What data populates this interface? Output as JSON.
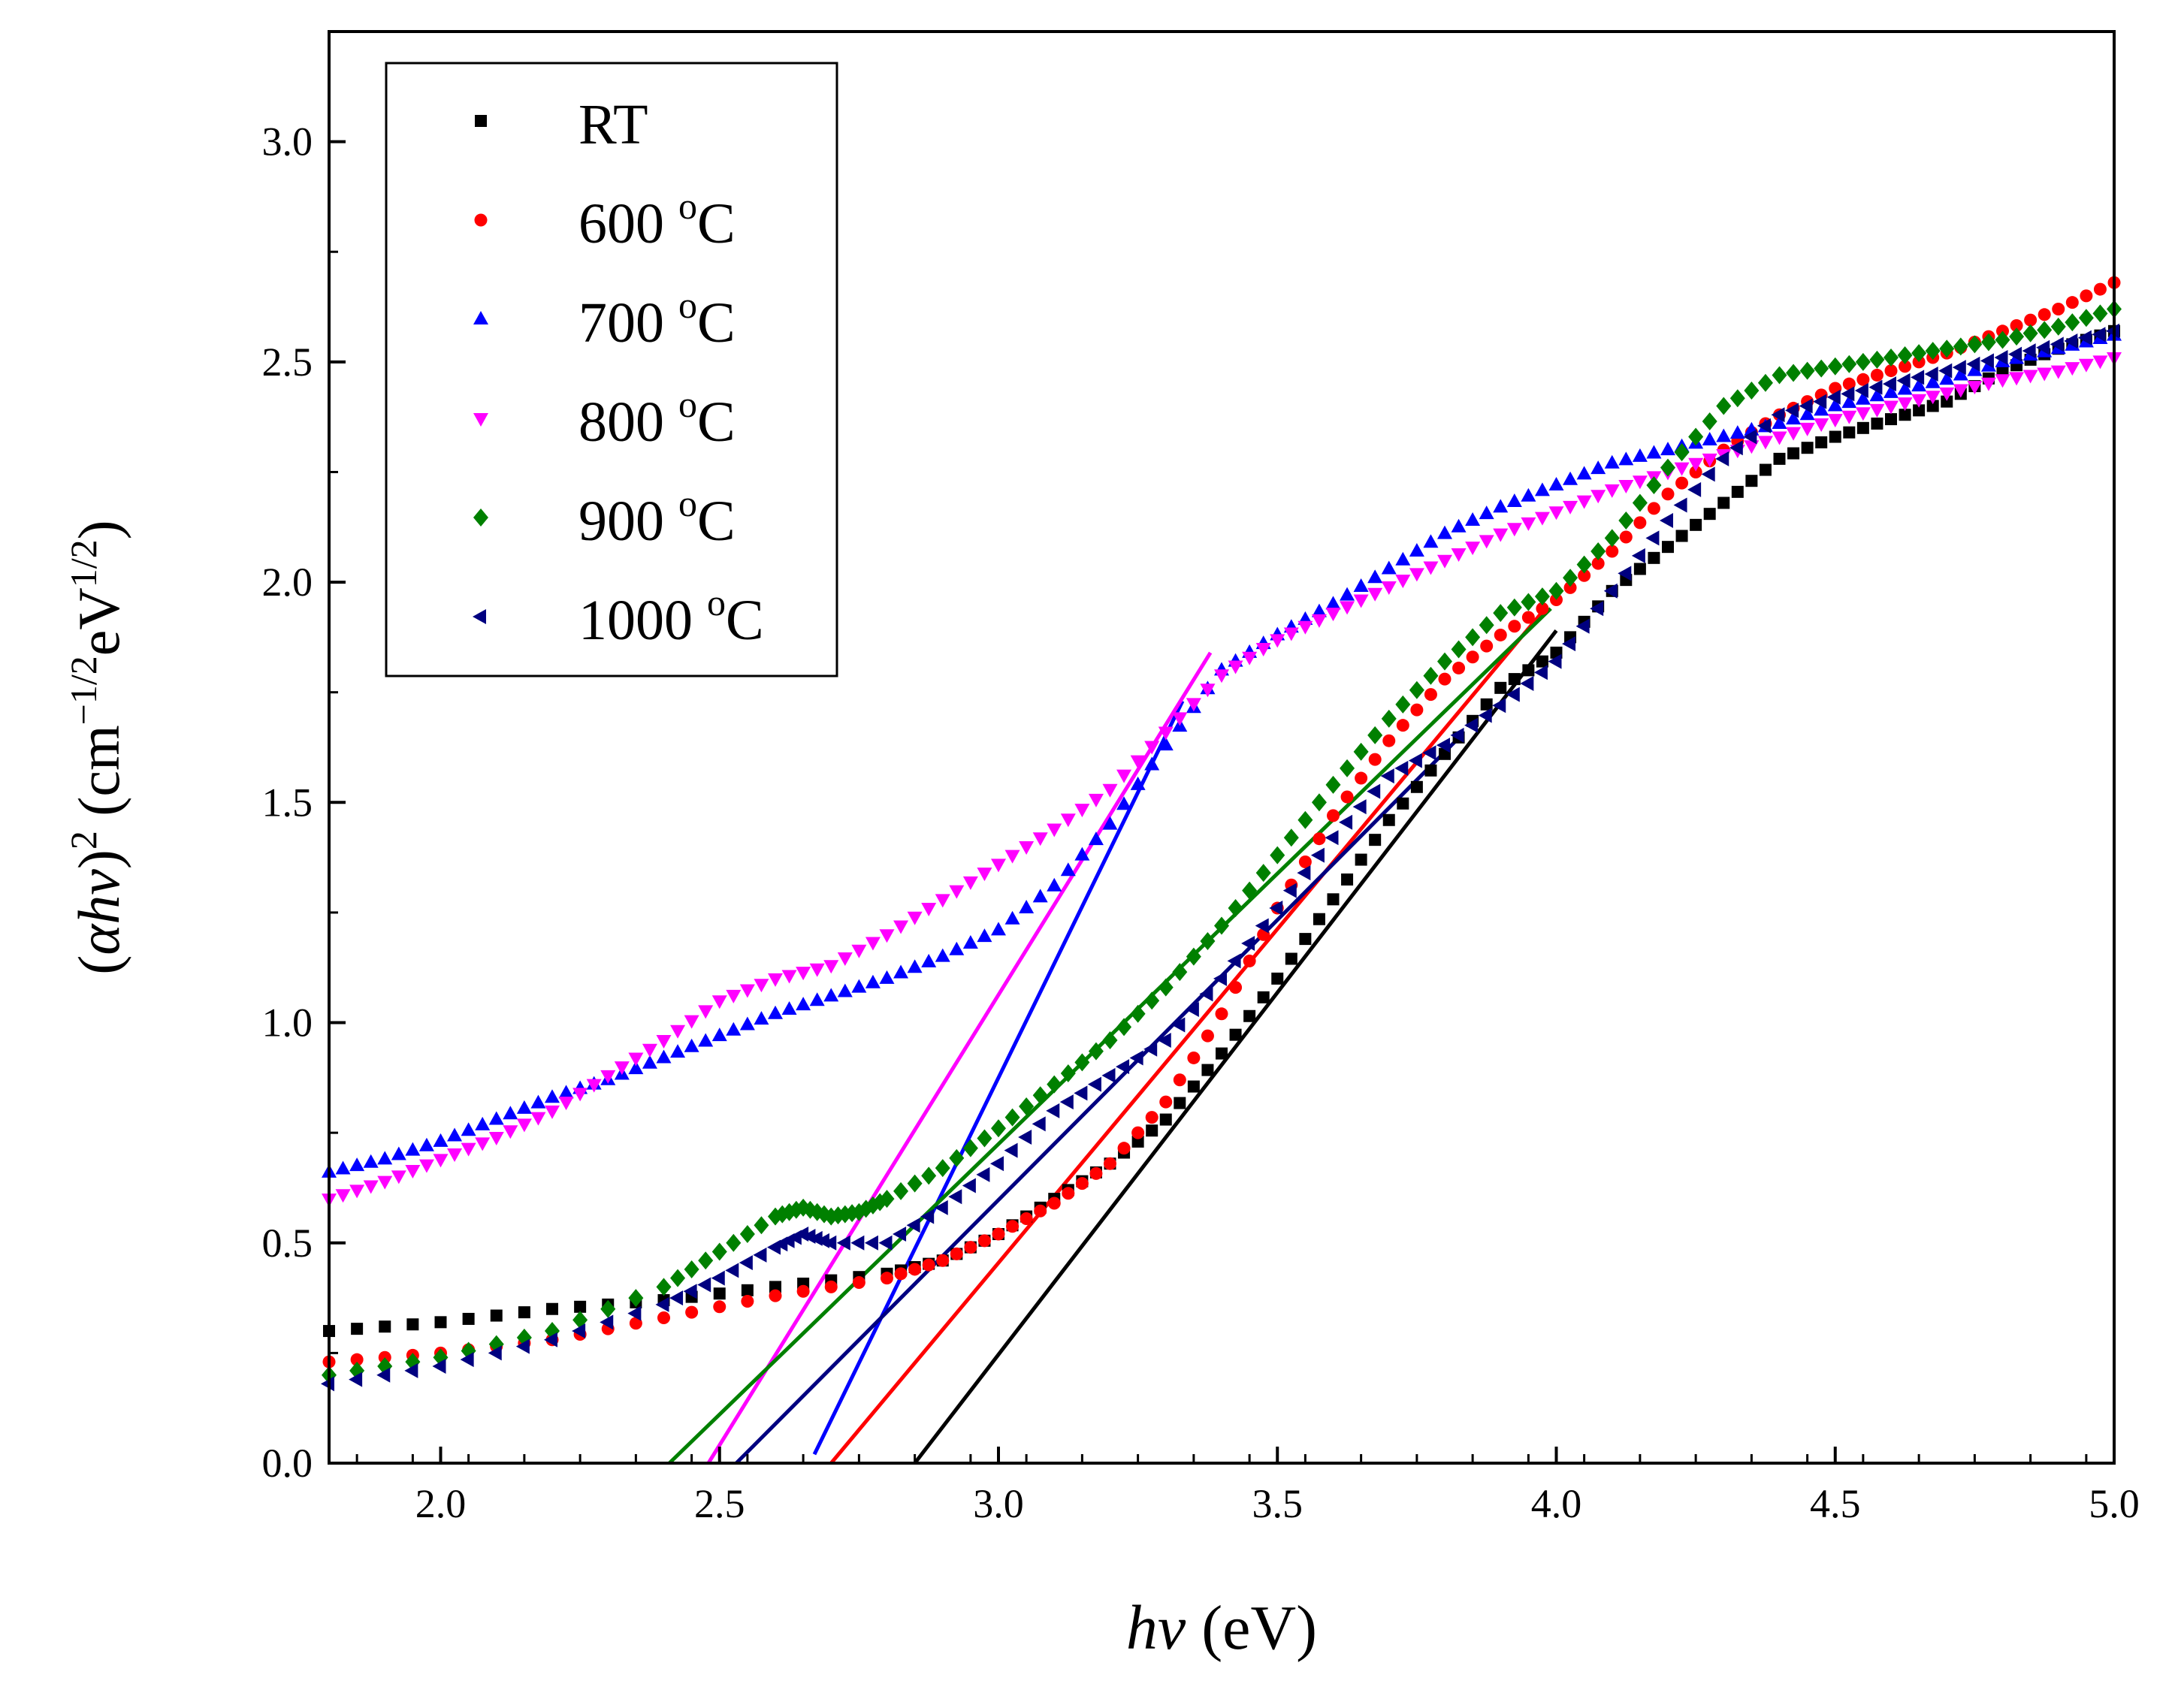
{
  "chart_data": {
    "type": "scatter",
    "title": "",
    "xlabel": {
      "italic": "hν",
      "normal": " (eV)"
    },
    "ylabel": {
      "open": "(",
      "alpha": "α",
      "italic": "hν",
      "close": ")",
      "sq": "2",
      "unit1": " (cm",
      "exp1": "−1/2",
      "unit2": "eV",
      "exp2": "1/2",
      "end": ")"
    },
    "xlim": [
      1.8,
      5.0
    ],
    "ylim": [
      0.0,
      3.25
    ],
    "x_ticks": [
      {
        "v": 2.0,
        "label": "2.0"
      },
      {
        "v": 2.5,
        "label": "2.5"
      },
      {
        "v": 3.0,
        "label": "3.0"
      },
      {
        "v": 3.5,
        "label": "3.5"
      },
      {
        "v": 4.0,
        "label": "4.0"
      },
      {
        "v": 4.5,
        "label": "4.5"
      },
      {
        "v": 5.0,
        "label": "5.0"
      }
    ],
    "y_ticks": [
      {
        "v": 0.0,
        "label": "0.0"
      },
      {
        "v": 0.5,
        "label": "0.5"
      },
      {
        "v": 1.0,
        "label": "1.0"
      },
      {
        "v": 1.5,
        "label": "1.5"
      },
      {
        "v": 2.0,
        "label": "2.0"
      },
      {
        "v": 2.5,
        "label": "2.5"
      },
      {
        "v": 3.0,
        "label": "3.0"
      }
    ],
    "legend_position": "top-left",
    "series": [
      {
        "name": "RT",
        "label": "RT",
        "sup": "",
        "unit": "",
        "color": "#000000",
        "marker": "square",
        "x": [
          1.8,
          2.0,
          2.2,
          2.4,
          2.6,
          2.8,
          2.9,
          3.0,
          3.1,
          3.2,
          3.3,
          3.4,
          3.5,
          3.6,
          3.7,
          3.8,
          3.9,
          4.0,
          4.1,
          4.2,
          4.3,
          4.4,
          4.5,
          4.6,
          4.7,
          4.8,
          4.9,
          5.0
        ],
        "y": [
          0.3,
          0.32,
          0.35,
          0.37,
          0.4,
          0.43,
          0.46,
          0.52,
          0.6,
          0.68,
          0.78,
          0.93,
          1.1,
          1.28,
          1.46,
          1.61,
          1.76,
          1.84,
          1.98,
          2.08,
          2.18,
          2.28,
          2.33,
          2.37,
          2.41,
          2.48,
          2.53,
          2.57
        ],
        "fit": [
          [
            2.85,
            0.0
          ],
          [
            4.0,
            1.89
          ]
        ]
      },
      {
        "name": "600 °C",
        "label": "600 ",
        "sup": "o",
        "unit": "C",
        "color": "#ff0000",
        "marker": "circle",
        "x": [
          1.8,
          2.0,
          2.2,
          2.4,
          2.6,
          2.8,
          2.9,
          3.0,
          3.1,
          3.2,
          3.3,
          3.4,
          3.5,
          3.6,
          3.7,
          3.8,
          3.9,
          4.0,
          4.1,
          4.2,
          4.3,
          4.4,
          4.5,
          4.6,
          4.7,
          4.8,
          4.9,
          5.0
        ],
        "y": [
          0.23,
          0.25,
          0.28,
          0.33,
          0.38,
          0.42,
          0.46,
          0.52,
          0.59,
          0.68,
          0.82,
          1.02,
          1.26,
          1.47,
          1.64,
          1.78,
          1.88,
          1.96,
          2.07,
          2.2,
          2.3,
          2.38,
          2.44,
          2.48,
          2.52,
          2.57,
          2.62,
          2.68
        ],
        "fit": [
          [
            2.7,
            0.0
          ],
          [
            3.98,
            1.94
          ]
        ]
      },
      {
        "name": "700 °C",
        "label": "700 ",
        "sup": "o",
        "unit": "C",
        "color": "#0000ff",
        "marker": "triangle-up",
        "x": [
          1.8,
          1.9,
          2.0,
          2.1,
          2.2,
          2.3,
          2.4,
          2.5,
          2.6,
          2.7,
          2.8,
          2.9,
          3.0,
          3.1,
          3.2,
          3.3,
          3.4,
          3.5,
          3.6,
          3.7,
          3.8,
          3.9,
          4.0,
          4.1,
          4.2,
          4.3,
          4.4,
          4.5,
          4.6,
          4.7,
          4.8,
          4.9,
          5.0
        ],
        "y": [
          0.66,
          0.69,
          0.73,
          0.78,
          0.83,
          0.87,
          0.92,
          0.97,
          1.02,
          1.06,
          1.1,
          1.15,
          1.21,
          1.31,
          1.45,
          1.63,
          1.8,
          1.88,
          1.95,
          2.03,
          2.11,
          2.17,
          2.22,
          2.27,
          2.3,
          2.33,
          2.36,
          2.4,
          2.43,
          2.46,
          2.5,
          2.53,
          2.56
        ],
        "fit": [
          [
            2.67,
            0.02
          ],
          [
            3.33,
            1.73
          ]
        ]
      },
      {
        "name": "800 °C",
        "label": "800 ",
        "sup": "o",
        "unit": "C",
        "color": "#ff00ff",
        "marker": "triangle-down",
        "x": [
          1.8,
          1.9,
          2.0,
          2.1,
          2.2,
          2.3,
          2.4,
          2.5,
          2.6,
          2.7,
          2.8,
          2.9,
          3.0,
          3.1,
          3.2,
          3.3,
          3.4,
          3.5,
          3.6,
          3.7,
          3.8,
          3.9,
          4.0,
          4.1,
          4.2,
          4.3,
          4.4,
          4.5,
          4.6,
          4.7,
          4.8,
          4.9,
          5.0
        ],
        "y": [
          0.6,
          0.64,
          0.69,
          0.74,
          0.8,
          0.88,
          0.96,
          1.05,
          1.1,
          1.13,
          1.2,
          1.28,
          1.36,
          1.44,
          1.53,
          1.66,
          1.79,
          1.87,
          1.93,
          1.99,
          2.05,
          2.11,
          2.16,
          2.21,
          2.25,
          2.29,
          2.33,
          2.37,
          2.4,
          2.43,
          2.46,
          2.48,
          2.51
        ],
        "fit": [
          [
            2.48,
            0.0
          ],
          [
            3.38,
            1.84
          ]
        ]
      },
      {
        "name": "900 °C",
        "label": "900 ",
        "sup": "o",
        "unit": "C",
        "color": "#008000",
        "marker": "diamond",
        "x": [
          1.8,
          2.0,
          2.2,
          2.4,
          2.5,
          2.6,
          2.65,
          2.7,
          2.75,
          2.8,
          2.9,
          3.0,
          3.1,
          3.2,
          3.3,
          3.4,
          3.5,
          3.6,
          3.7,
          3.8,
          3.9,
          4.0,
          4.1,
          4.2,
          4.3,
          4.4,
          4.5,
          4.6,
          4.7,
          4.8,
          4.9,
          5.0
        ],
        "y": [
          0.2,
          0.24,
          0.3,
          0.4,
          0.48,
          0.56,
          0.58,
          0.56,
          0.57,
          0.6,
          0.67,
          0.76,
          0.86,
          0.96,
          1.08,
          1.22,
          1.38,
          1.54,
          1.69,
          1.82,
          1.93,
          1.98,
          2.1,
          2.26,
          2.4,
          2.47,
          2.49,
          2.51,
          2.53,
          2.55,
          2.58,
          2.62
        ],
        "fit": [
          [
            2.41,
            0.0
          ],
          [
            3.99,
            1.94
          ]
        ]
      },
      {
        "name": "1000 °C",
        "label": "1000 ",
        "sup": "o",
        "unit": "C",
        "color": "#000080",
        "marker": "triangle-left",
        "x": [
          1.8,
          2.0,
          2.2,
          2.4,
          2.5,
          2.6,
          2.65,
          2.7,
          2.8,
          2.9,
          3.0,
          3.1,
          3.2,
          3.3,
          3.4,
          3.5,
          3.6,
          3.7,
          3.8,
          3.9,
          4.0,
          4.1,
          4.2,
          4.3,
          4.4,
          4.5,
          4.6,
          4.7,
          4.8,
          4.9,
          5.0
        ],
        "y": [
          0.18,
          0.22,
          0.28,
          0.36,
          0.42,
          0.49,
          0.52,
          0.5,
          0.5,
          0.58,
          0.68,
          0.8,
          0.88,
          0.96,
          1.1,
          1.26,
          1.42,
          1.56,
          1.63,
          1.72,
          1.82,
          1.98,
          2.14,
          2.28,
          2.38,
          2.42,
          2.45,
          2.48,
          2.51,
          2.54,
          2.57
        ],
        "fit": [
          [
            2.53,
            0.0
          ],
          [
            3.82,
            1.64
          ]
        ]
      }
    ]
  }
}
